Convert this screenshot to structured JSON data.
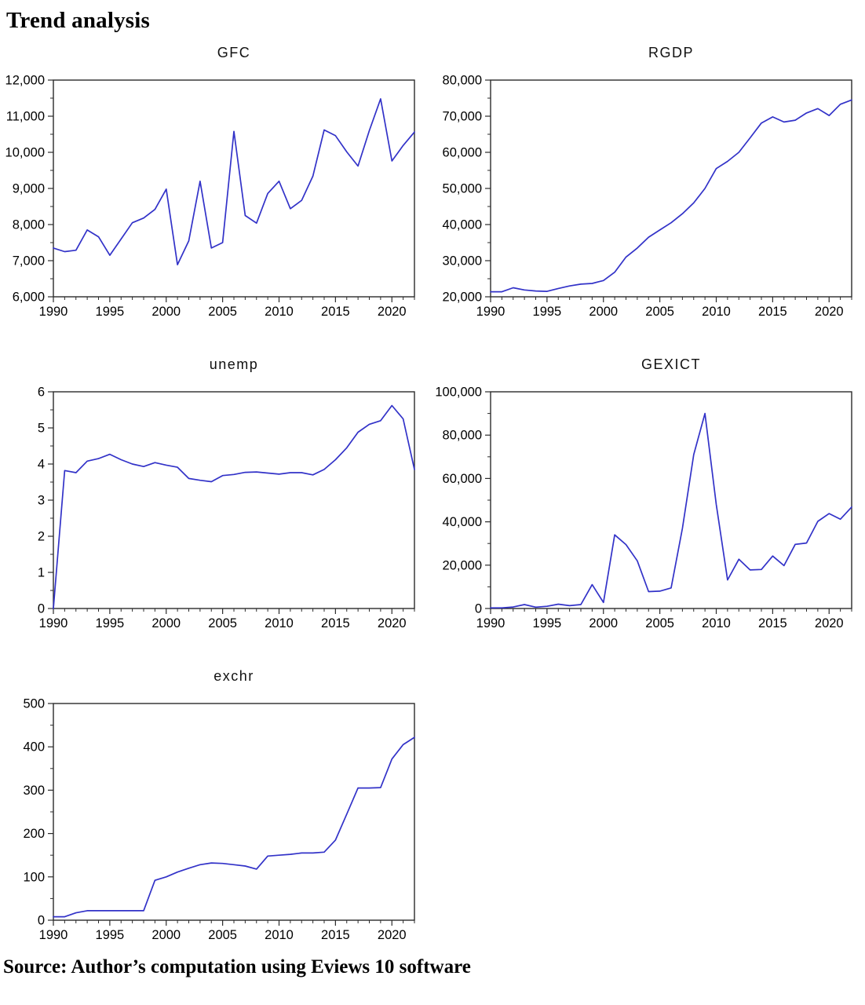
{
  "page": {
    "title": "Trend analysis",
    "source_note": "Source: Author’s computation using Eviews 10 software"
  },
  "colors": {
    "line": "#3232c8",
    "axis": "#2b2b2b",
    "text": "#000000"
  },
  "chart_data": [
    {
      "type": "line",
      "title": "GFC",
      "x": [
        1990,
        1991,
        1992,
        1993,
        1994,
        1995,
        1996,
        1997,
        1998,
        1999,
        2000,
        2001,
        2002,
        2003,
        2004,
        2005,
        2006,
        2007,
        2008,
        2009,
        2010,
        2011,
        2012,
        2013,
        2014,
        2015,
        2016,
        2017,
        2018,
        2019,
        2020,
        2021,
        2022
      ],
      "values": [
        7350,
        7250,
        7290,
        7850,
        7660,
        7150,
        7600,
        8050,
        8180,
        8420,
        8980,
        6890,
        7550,
        9200,
        7350,
        7500,
        10580,
        8250,
        8040,
        8860,
        9200,
        8440,
        8670,
        9340,
        10620,
        10460,
        10010,
        9620,
        10600,
        11480,
        9760,
        10190,
        10560
      ],
      "ylim": [
        6000,
        12000
      ],
      "ystep": 1000,
      "xticks": [
        1990,
        1995,
        2000,
        2005,
        2010,
        2015,
        2020
      ],
      "grid": false,
      "legend": "none",
      "label_format": "comma"
    },
    {
      "type": "line",
      "title": "RGDP",
      "x": [
        1990,
        1991,
        1992,
        1993,
        1994,
        1995,
        1996,
        1997,
        1998,
        1999,
        2000,
        2001,
        2002,
        2003,
        2004,
        2005,
        2006,
        2007,
        2008,
        2009,
        2010,
        2011,
        2012,
        2013,
        2014,
        2015,
        2016,
        2017,
        2018,
        2019,
        2020,
        2021,
        2022
      ],
      "values": [
        21400,
        21400,
        22500,
        21900,
        21600,
        21500,
        22300,
        23000,
        23500,
        23700,
        24500,
        26800,
        31000,
        33500,
        36500,
        38500,
        40500,
        43000,
        46000,
        50000,
        55500,
        57500,
        60000,
        64000,
        68100,
        69800,
        68400,
        68900,
        70900,
        72100,
        70200,
        73300,
        74500
      ],
      "ylim": [
        20000,
        80000
      ],
      "ystep": 10000,
      "xticks": [
        1990,
        1995,
        2000,
        2005,
        2010,
        2015,
        2020
      ],
      "grid": false,
      "legend": "none",
      "label_format": "comma"
    },
    {
      "type": "line",
      "title": "unemp",
      "x": [
        1990,
        1991,
        1992,
        1993,
        1994,
        1995,
        1996,
        1997,
        1998,
        1999,
        2000,
        2001,
        2002,
        2003,
        2004,
        2005,
        2006,
        2007,
        2008,
        2009,
        2010,
        2011,
        2012,
        2013,
        2014,
        2015,
        2016,
        2017,
        2018,
        2019,
        2020,
        2021,
        2022
      ],
      "values": [
        0,
        3.82,
        3.76,
        4.08,
        4.15,
        4.27,
        4.12,
        4.0,
        3.93,
        4.04,
        3.97,
        3.91,
        3.6,
        3.55,
        3.51,
        3.68,
        3.71,
        3.77,
        3.78,
        3.75,
        3.72,
        3.76,
        3.76,
        3.7,
        3.85,
        4.12,
        4.45,
        4.88,
        5.1,
        5.2,
        5.62,
        5.25,
        3.85
      ],
      "ylim": [
        0,
        6
      ],
      "ystep": 1,
      "xticks": [
        1990,
        1995,
        2000,
        2005,
        2010,
        2015,
        2020
      ],
      "grid": false,
      "legend": "none",
      "label_format": "plain"
    },
    {
      "type": "line",
      "title": "GEXICT",
      "x": [
        1990,
        1991,
        1992,
        1993,
        1994,
        1995,
        1996,
        1997,
        1998,
        1999,
        2000,
        2001,
        2002,
        2003,
        2004,
        2005,
        2006,
        2007,
        2008,
        2009,
        2010,
        2011,
        2012,
        2013,
        2014,
        2015,
        2016,
        2017,
        2018,
        2019,
        2020,
        2021,
        2022
      ],
      "values": [
        300,
        300,
        700,
        1800,
        600,
        1000,
        2000,
        1300,
        1800,
        11000,
        2800,
        34000,
        29500,
        22000,
        7800,
        8000,
        9500,
        37000,
        71000,
        90000,
        48000,
        13200,
        22700,
        17800,
        18000,
        24200,
        19800,
        29600,
        30200,
        40200,
        43800,
        41200,
        46800
      ],
      "ylim": [
        0,
        100000
      ],
      "ystep": 20000,
      "xticks": [
        1990,
        1995,
        2000,
        2005,
        2010,
        2015,
        2020
      ],
      "grid": false,
      "legend": "none",
      "label_format": "comma"
    },
    {
      "type": "line",
      "title": "exchr",
      "x": [
        1990,
        1991,
        1992,
        1993,
        1994,
        1995,
        1996,
        1997,
        1998,
        1999,
        2000,
        2001,
        2002,
        2003,
        2004,
        2005,
        2006,
        2007,
        2008,
        2009,
        2010,
        2011,
        2012,
        2013,
        2014,
        2015,
        2016,
        2017,
        2018,
        2019,
        2020,
        2021,
        2022
      ],
      "values": [
        8,
        8,
        17,
        22,
        22,
        22,
        22,
        22,
        22,
        92,
        100,
        111,
        120,
        128,
        132,
        131,
        128,
        125,
        118,
        148,
        150,
        152,
        155,
        155,
        157,
        185,
        245,
        305,
        305,
        306,
        372,
        405,
        422
      ],
      "ylim": [
        0,
        500
      ],
      "ystep": 100,
      "xticks": [
        1990,
        1995,
        2000,
        2005,
        2010,
        2015,
        2020
      ],
      "grid": false,
      "legend": "none",
      "label_format": "plain"
    }
  ]
}
